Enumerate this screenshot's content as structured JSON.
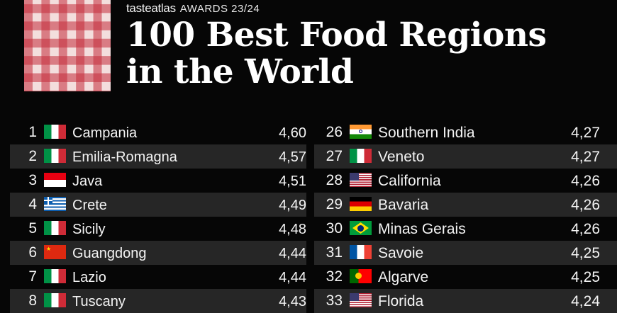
{
  "header": {
    "brand_name": "tasteatlas",
    "award_label": "AWARDS 23/24",
    "title_line1": "100 Best Food Regions",
    "title_line2": "in the World"
  },
  "colors": {
    "background": "#060606",
    "row_alt": "#262626",
    "logo_red": "#c42c3a",
    "logo_cream": "#f3dedd"
  },
  "rankings": {
    "left": [
      {
        "rank": "1",
        "flag_icon": "italy-flag-icon",
        "region": "Campania",
        "score": "4,60"
      },
      {
        "rank": "2",
        "flag_icon": "italy-flag-icon",
        "region": "Emilia-Romagna",
        "score": "4,57"
      },
      {
        "rank": "3",
        "flag_icon": "indonesia-flag-icon",
        "region": "Java",
        "score": "4,51"
      },
      {
        "rank": "4",
        "flag_icon": "greece-flag-icon",
        "region": "Crete",
        "score": "4,49"
      },
      {
        "rank": "5",
        "flag_icon": "italy-flag-icon",
        "region": "Sicily",
        "score": "4,48"
      },
      {
        "rank": "6",
        "flag_icon": "china-flag-icon",
        "region": "Guangdong",
        "score": "4,44"
      },
      {
        "rank": "7",
        "flag_icon": "italy-flag-icon",
        "region": "Lazio",
        "score": "4,44"
      },
      {
        "rank": "8",
        "flag_icon": "italy-flag-icon",
        "region": "Tuscany",
        "score": "4,43"
      }
    ],
    "right": [
      {
        "rank": "26",
        "flag_icon": "india-flag-icon",
        "region": "Southern India",
        "score": "4,27"
      },
      {
        "rank": "27",
        "flag_icon": "italy-flag-icon",
        "region": "Veneto",
        "score": "4,27"
      },
      {
        "rank": "28",
        "flag_icon": "usa-flag-icon",
        "region": "California",
        "score": "4,26"
      },
      {
        "rank": "29",
        "flag_icon": "germany-flag-icon",
        "region": "Bavaria",
        "score": "4,26"
      },
      {
        "rank": "30",
        "flag_icon": "brazil-flag-icon",
        "region": "Minas Gerais",
        "score": "4,26"
      },
      {
        "rank": "31",
        "flag_icon": "france-flag-icon",
        "region": "Savoie",
        "score": "4,25"
      },
      {
        "rank": "32",
        "flag_icon": "portugal-flag-icon",
        "region": "Algarve",
        "score": "4,25"
      },
      {
        "rank": "33",
        "flag_icon": "usa-flag-icon",
        "region": "Florida",
        "score": "4,24"
      }
    ]
  }
}
